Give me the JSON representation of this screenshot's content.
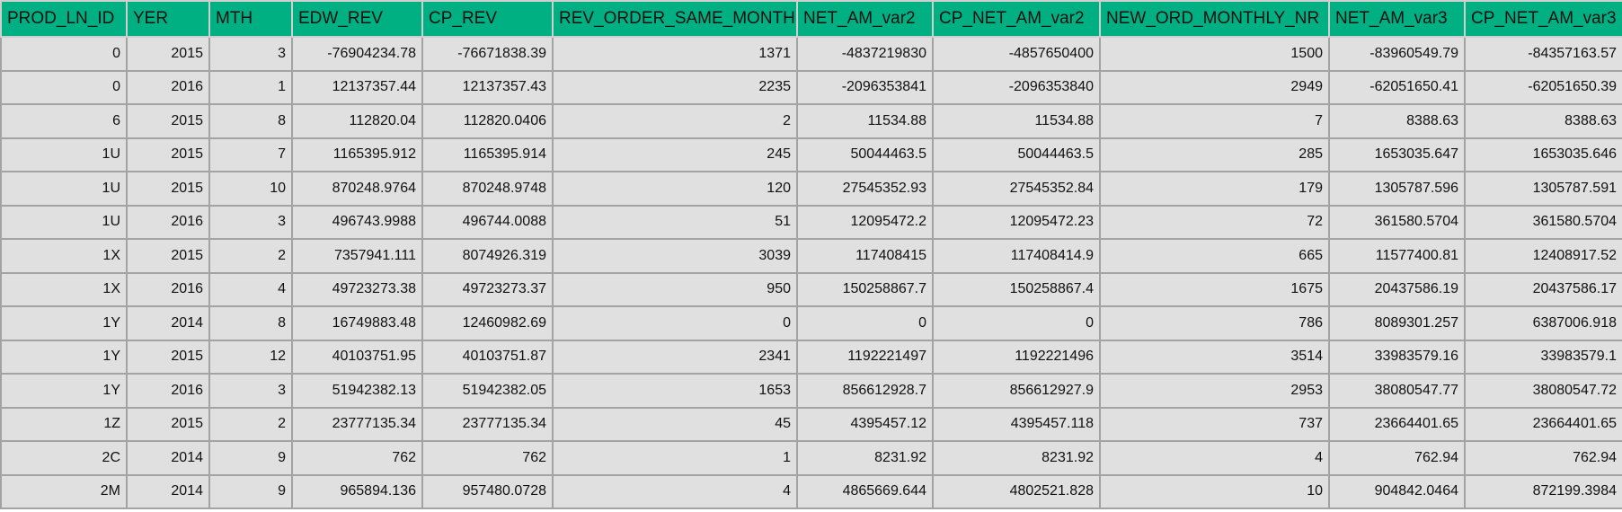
{
  "table": {
    "columns": [
      "PROD_LN_ID",
      "YER",
      "MTH",
      "EDW_REV",
      "CP_REV",
      "REV_ORDER_SAME_MONTH",
      "NET_AM_var2",
      "CP_NET_AM_var2",
      "NEW_ORD_MONTHLY_NR",
      "NET_AM_var3",
      "CP_NET_AM_var3"
    ],
    "rows": [
      [
        "0",
        "2015",
        "3",
        "-76904234.78",
        "-76671838.39",
        "1371",
        "-4837219830",
        "-4857650400",
        "1500",
        "-83960549.79",
        "-84357163.57"
      ],
      [
        "0",
        "2016",
        "1",
        "12137357.44",
        "12137357.43",
        "2235",
        "-2096353841",
        "-2096353840",
        "2949",
        "-62051650.41",
        "-62051650.39"
      ],
      [
        "6",
        "2015",
        "8",
        "112820.04",
        "112820.0406",
        "2",
        "11534.88",
        "11534.88",
        "7",
        "8388.63",
        "8388.63"
      ],
      [
        "1U",
        "2015",
        "7",
        "1165395.912",
        "1165395.914",
        "245",
        "50044463.5",
        "50044463.5",
        "285",
        "1653035.647",
        "1653035.646"
      ],
      [
        "1U",
        "2015",
        "10",
        "870248.9764",
        "870248.9748",
        "120",
        "27545352.93",
        "27545352.84",
        "179",
        "1305787.596",
        "1305787.591"
      ],
      [
        "1U",
        "2016",
        "3",
        "496743.9988",
        "496744.0088",
        "51",
        "12095472.2",
        "12095472.23",
        "72",
        "361580.5704",
        "361580.5704"
      ],
      [
        "1X",
        "2015",
        "2",
        "7357941.111",
        "8074926.319",
        "3039",
        "117408415",
        "117408414.9",
        "665",
        "11577400.81",
        "12408917.52"
      ],
      [
        "1X",
        "2016",
        "4",
        "49723273.38",
        "49723273.37",
        "950",
        "150258867.7",
        "150258867.4",
        "1675",
        "20437586.19",
        "20437586.17"
      ],
      [
        "1Y",
        "2014",
        "8",
        "16749883.48",
        "12460982.69",
        "0",
        "0",
        "0",
        "786",
        "8089301.257",
        "6387006.918"
      ],
      [
        "1Y",
        "2015",
        "12",
        "40103751.95",
        "40103751.87",
        "2341",
        "1192221497",
        "1192221496",
        "3514",
        "33983579.16",
        "33983579.1"
      ],
      [
        "1Y",
        "2016",
        "3",
        "51942382.13",
        "51942382.05",
        "1653",
        "856612928.7",
        "856612927.9",
        "2953",
        "38080547.77",
        "38080547.72"
      ],
      [
        "1Z",
        "2015",
        "2",
        "23777135.34",
        "23777135.34",
        "45",
        "4395457.12",
        "4395457.118",
        "737",
        "23664401.65",
        "23664401.65"
      ],
      [
        "2C",
        "2014",
        "9",
        "762",
        "762",
        "1",
        "8231.92",
        "8231.92",
        "4",
        "762.94",
        "762.94"
      ],
      [
        "2M",
        "2014",
        "9",
        "965894.136",
        "957480.0728",
        "4",
        "4865669.644",
        "4802521.828",
        "10",
        "904842.0464",
        "872199.3984"
      ]
    ]
  },
  "colors": {
    "header_bg": "#00b083",
    "cell_bg": "#e0e0e0",
    "grid_line": "#a3a3a3"
  }
}
